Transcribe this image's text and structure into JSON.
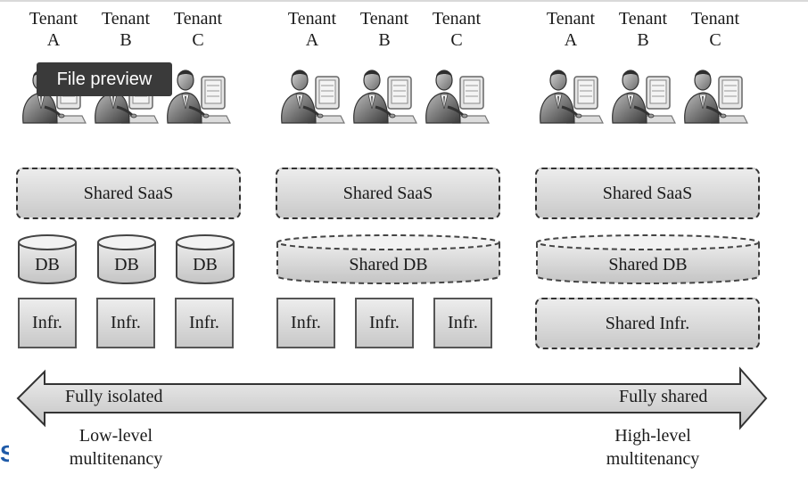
{
  "overlay": {
    "file_preview_label": "File preview"
  },
  "tenant_word": "Tenant",
  "tenants": [
    "A",
    "B",
    "C"
  ],
  "models": [
    {
      "saas": "Shared SaaS",
      "db": {
        "kind": "separate",
        "labels": [
          "DB",
          "DB",
          "DB"
        ]
      },
      "infra": {
        "kind": "separate",
        "labels": [
          "Infr.",
          "Infr.",
          "Infr."
        ]
      }
    },
    {
      "saas": "Shared SaaS",
      "db": {
        "kind": "shared",
        "label": "Shared DB"
      },
      "infra": {
        "kind": "separate",
        "labels": [
          "Infr.",
          "Infr.",
          "Infr."
        ]
      }
    },
    {
      "saas": "Shared SaaS",
      "db": {
        "kind": "shared",
        "label": "Shared DB"
      },
      "infra": {
        "kind": "shared",
        "label": "Shared Infr."
      }
    }
  ],
  "spectrum": {
    "left_label": "Fully isolated",
    "right_label": "Fully shared",
    "left_caption": [
      "Low-level",
      "multitenancy"
    ],
    "right_caption": [
      "High-level",
      "multitenancy"
    ]
  },
  "colors": {
    "box_fill_light": "#ececec",
    "box_fill_dark": "#c9c9c9",
    "overlay_bg": "#3a3a3a"
  },
  "icons": {
    "tenant": "person-at-computer-icon"
  }
}
